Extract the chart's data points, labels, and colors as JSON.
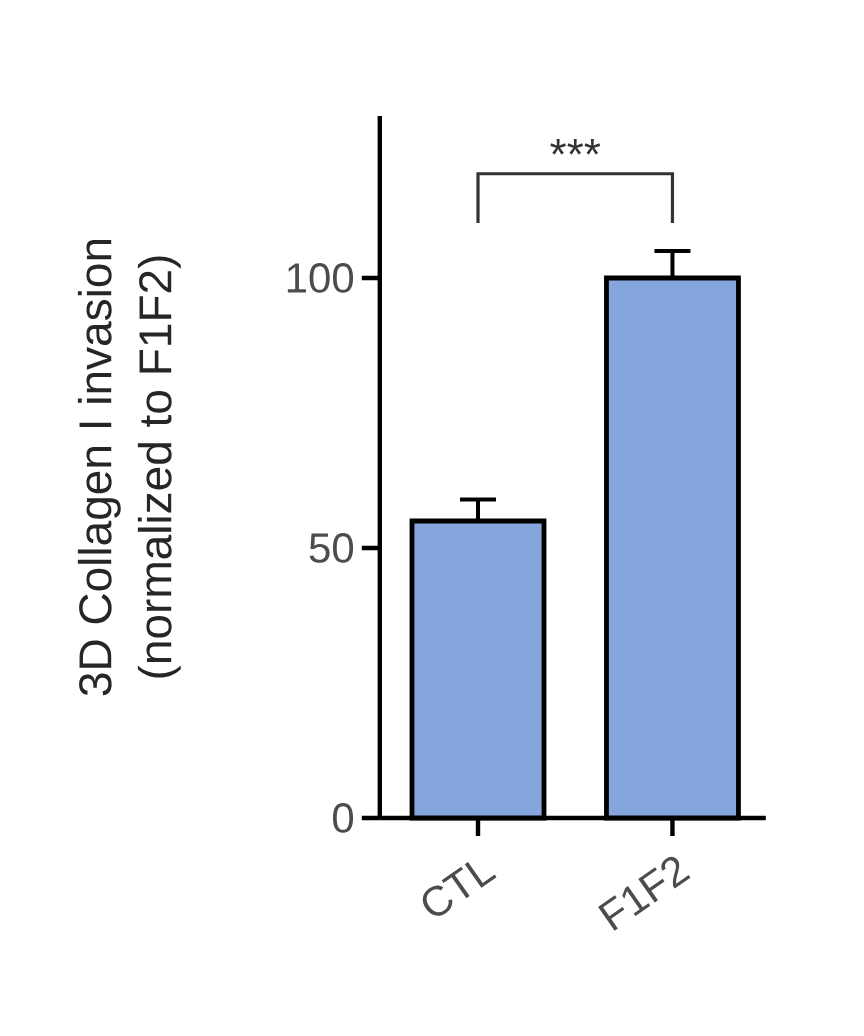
{
  "chart_data": {
    "type": "bar",
    "ylabel": "3D Collagen I invasion\n(normalized to F1F2)",
    "categories": [
      "CTL",
      "F1F2"
    ],
    "values": [
      55,
      100
    ],
    "errors": [
      4,
      5
    ],
    "color": "#84a6dc",
    "ylim": [
      0,
      130
    ],
    "yticks": [
      0,
      50,
      100
    ],
    "grid": false,
    "annotations": [
      "***"
    ]
  }
}
